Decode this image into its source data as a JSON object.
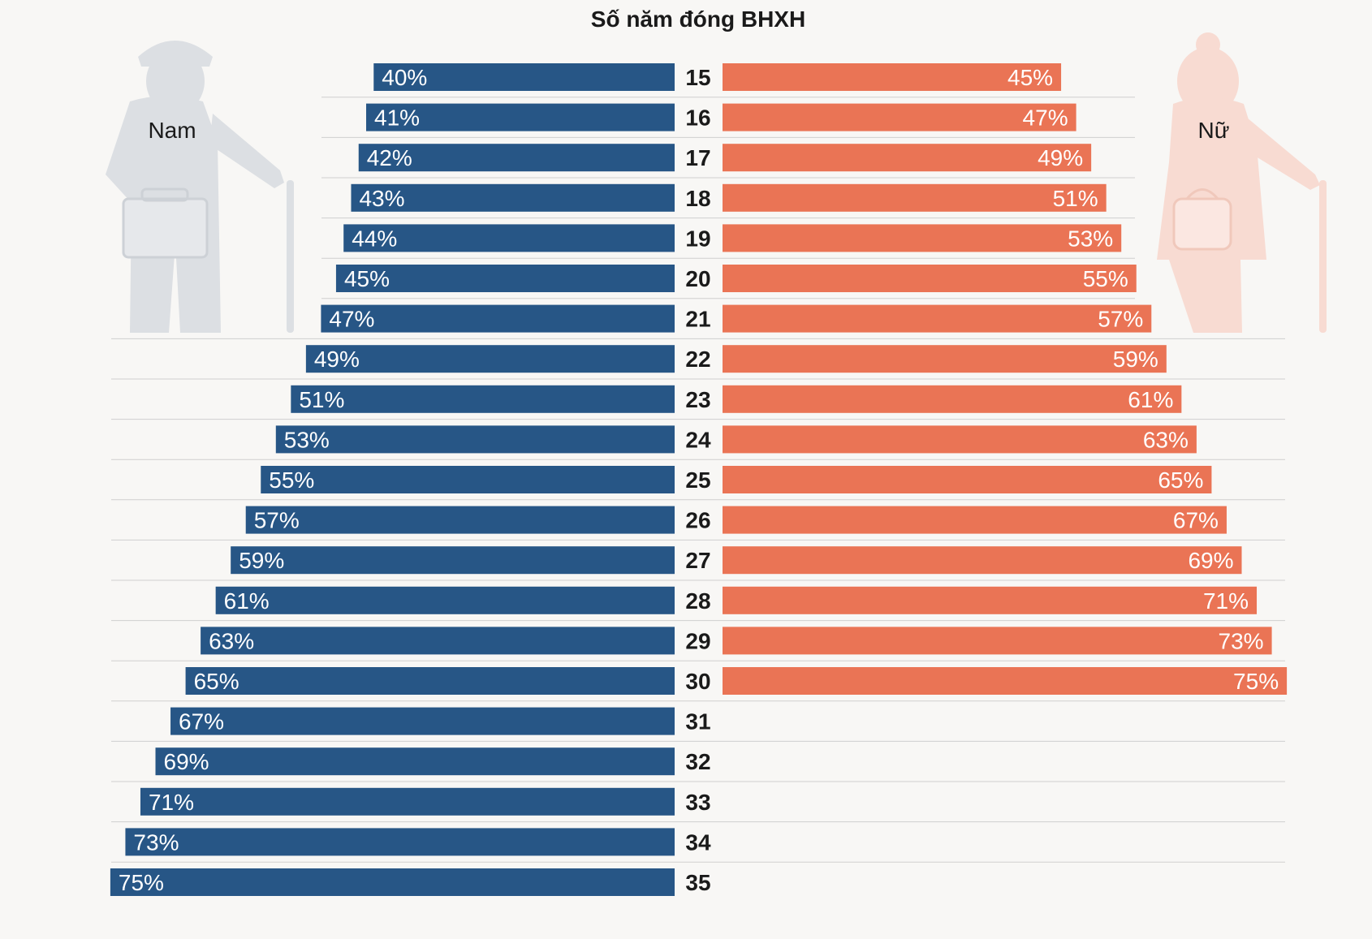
{
  "chart_data": {
    "type": "bar",
    "title": "Số năm đóng BHXH",
    "categories": [
      15,
      16,
      17,
      18,
      19,
      20,
      21,
      22,
      23,
      24,
      25,
      26,
      27,
      28,
      29,
      30,
      31,
      32,
      33,
      34,
      35
    ],
    "series": [
      {
        "name": "Nam",
        "color": "#275686",
        "values": [
          40,
          41,
          42,
          43,
          44,
          45,
          47,
          49,
          51,
          53,
          55,
          57,
          59,
          61,
          63,
          65,
          67,
          69,
          71,
          73,
          75
        ]
      },
      {
        "name": "Nữ",
        "color": "#ea7455",
        "values": [
          45,
          47,
          49,
          51,
          53,
          55,
          57,
          59,
          61,
          63,
          65,
          67,
          69,
          71,
          73,
          75,
          null,
          null,
          null,
          null,
          null
        ]
      }
    ],
    "unit": "%",
    "xlim": [
      0,
      75
    ],
    "legend": {
      "left": "Nam",
      "right": "Nữ"
    }
  }
}
